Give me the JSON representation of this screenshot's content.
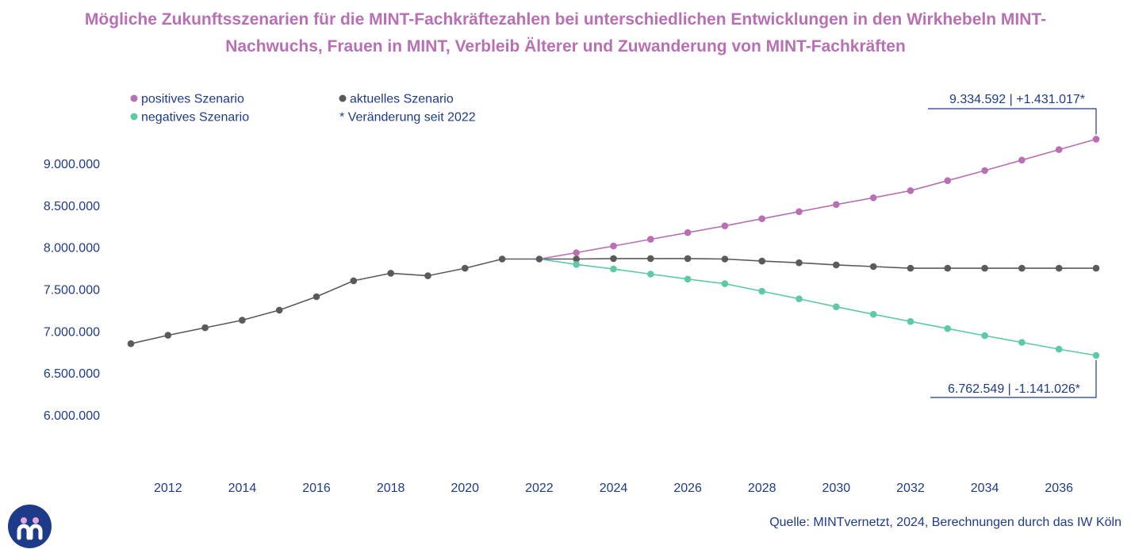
{
  "chart_data": {
    "type": "line",
    "title_lines": [
      "Mögliche Zukunftsszenarien für die MINT-Fachkräftezahlen bei unterschiedlichen Entwicklungen in den Wirkhebeln MINT-",
      "Nachwuchs, Frauen in MINT, Verbleib Älterer und Zuwanderung von MINT-Fachkräften"
    ],
    "x_ticks": [
      2012,
      2014,
      2016,
      2018,
      2020,
      2022,
      2024,
      2026,
      2028,
      2030,
      2032,
      2034,
      2036
    ],
    "xlim": [
      2011,
      2037
    ],
    "y_ticks": [
      6000000,
      6500000,
      7000000,
      7500000,
      8000000,
      8500000,
      9000000
    ],
    "y_tick_labels": [
      "6.000.000",
      "6.500.000",
      "7.000.000",
      "7.500.000",
      "8.000.000",
      "8.500.000",
      "9.000.000"
    ],
    "ylim": [
      6000000,
      9000000
    ],
    "grid": false,
    "legend": {
      "placement": "top-left",
      "items": [
        {
          "label": "positives Szenario",
          "marker": true
        },
        {
          "label": "aktuelles Szenario",
          "marker": true
        },
        {
          "label": "negatives Szenario",
          "marker": true
        },
        {
          "label": "* Veränderung seit 2022",
          "marker": false
        }
      ]
    },
    "series": [
      {
        "name": "aktuelles Szenario",
        "color": "#5a5a5a",
        "x": [
          2011,
          2012,
          2013,
          2014,
          2015,
          2016,
          2017,
          2018,
          2019,
          2020,
          2021,
          2022,
          2023,
          2024,
          2025,
          2026,
          2027,
          2028,
          2029,
          2030,
          2031,
          2032,
          2033,
          2034,
          2035,
          2036,
          2037
        ],
        "values": [
          6850000,
          6950000,
          7040000,
          7130000,
          7250000,
          7410000,
          7600000,
          7690000,
          7660000,
          7750000,
          7860000,
          7860000,
          7860000,
          7865000,
          7865000,
          7865000,
          7860000,
          7835000,
          7815000,
          7790000,
          7770000,
          7750000,
          7750000,
          7750000,
          7750000,
          7750000,
          7750000
        ]
      },
      {
        "name": "positives Szenario",
        "color": "#b86fb3",
        "x": [
          2022,
          2023,
          2024,
          2025,
          2026,
          2027,
          2028,
          2029,
          2030,
          2031,
          2032,
          2033,
          2034,
          2035,
          2036,
          2037
        ],
        "values": [
          7860000,
          7935000,
          8015000,
          8095000,
          8175000,
          8255000,
          8340000,
          8425000,
          8510000,
          8590000,
          8675000,
          8795000,
          8915000,
          9040000,
          9165000,
          9290000
        ]
      },
      {
        "name": "negatives Szenario",
        "color": "#5cc9a7",
        "x": [
          2022,
          2023,
          2024,
          2025,
          2026,
          2027,
          2028,
          2029,
          2030,
          2031,
          2032,
          2033,
          2034,
          2035,
          2036,
          2037
        ],
        "values": [
          7860000,
          7795000,
          7740000,
          7680000,
          7620000,
          7565000,
          7475000,
          7385000,
          7290000,
          7200000,
          7115000,
          7030000,
          6945000,
          6865000,
          6785000,
          6710000
        ]
      }
    ],
    "annotations": [
      {
        "text": "9.334.592 | +1.431.017*",
        "series": "positives Szenario",
        "x": 2037,
        "position": "above"
      },
      {
        "text": "6.762.549 | -1.141.026*",
        "series": "negatives Szenario",
        "x": 2037,
        "position": "below"
      }
    ]
  },
  "colors": {
    "title": "#b86fb3",
    "text": "#1e3b8a",
    "current": "#5a5a5a",
    "positive": "#b86fb3",
    "negative": "#5cc9a7",
    "logo_bg": "#1e3b8a"
  },
  "source": "Quelle: MINTvernetzt, 2024, Berechnungen durch das IW Köln",
  "logo_icon": "mint-people-icon"
}
